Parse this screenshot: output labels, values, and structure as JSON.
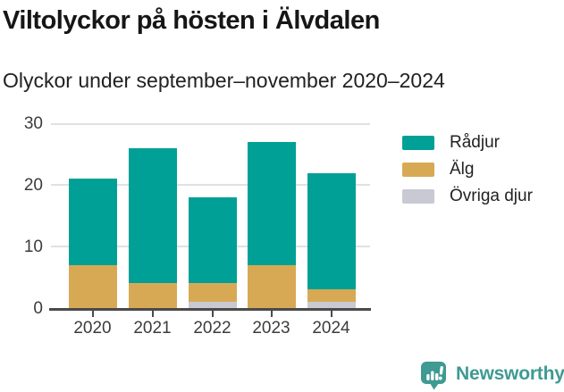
{
  "chart_data": {
    "type": "bar",
    "stacked": true,
    "title": "Viltolyckor på hösten i Älvdalen",
    "subtitle": "Olyckor under september–november 2020–2024",
    "categories": [
      "2020",
      "2021",
      "2022",
      "2023",
      "2024"
    ],
    "series": [
      {
        "name": "Rådjur",
        "color": "#00A096",
        "values": [
          14,
          22,
          14,
          20,
          19
        ]
      },
      {
        "name": "Älg",
        "color": "#D8A955",
        "values": [
          7,
          4,
          3,
          7,
          2
        ]
      },
      {
        "name": "Övriga djur",
        "color": "#C8C9D3",
        "values": [
          0,
          0,
          1,
          0,
          1
        ]
      }
    ],
    "stack_order_bottom_to_top": [
      "Övriga djur",
      "Älg",
      "Rådjur"
    ],
    "totals": [
      21,
      26,
      18,
      27,
      22
    ],
    "xlabel": "",
    "ylabel": "",
    "y_ticks": [
      0,
      10,
      20,
      30
    ],
    "ylim": [
      0,
      30
    ],
    "grid": true,
    "legend_position": "right",
    "colors": {
      "axis": "#4A4A4A",
      "grid": "#E1E1E1",
      "tick_label": "#3C3C3C"
    }
  },
  "footer": {
    "brand": "Newsworthy",
    "brand_color": "#3E9A92"
  }
}
